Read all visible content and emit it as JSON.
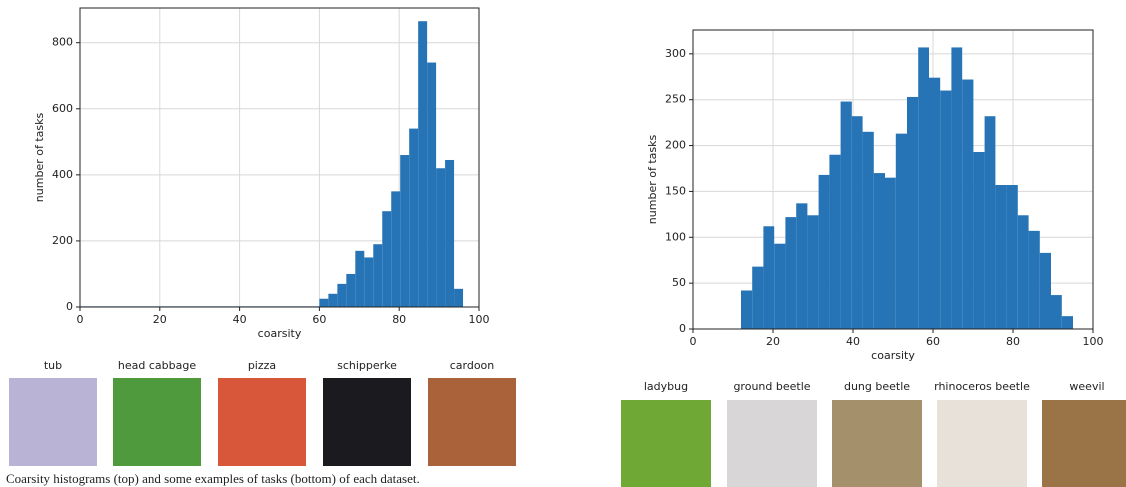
{
  "chart_data": [
    {
      "type": "histogram",
      "xlabel": "coarsity",
      "ylabel": "number of tasks",
      "bins": [
        0,
        60,
        62.25,
        64.5,
        66.75,
        69,
        71.25,
        73.5,
        75.75,
        78,
        80.25,
        82.5,
        84.75,
        87,
        89.25,
        91.5,
        93.75,
        96
      ],
      "values": [
        2,
        25,
        40,
        70,
        100,
        170,
        150,
        190,
        290,
        350,
        460,
        540,
        865,
        740,
        420,
        445,
        55
      ],
      "color": "#2674b6",
      "xlim": [
        0,
        100
      ],
      "ylim": [
        0,
        905
      ],
      "xticks": [
        0,
        20,
        40,
        60,
        80,
        100
      ],
      "yticks": [
        0,
        200,
        400,
        600,
        800
      ],
      "grid": true
    },
    {
      "type": "histogram",
      "xlabel": "coarsity",
      "ylabel": "number of tasks",
      "bins": [
        12,
        14.8,
        17.6,
        20.3,
        23.1,
        25.8,
        28.6,
        31.4,
        34.1,
        36.9,
        39.7,
        42.4,
        45.2,
        48.0,
        50.7,
        53.5,
        56.3,
        59.0,
        61.8,
        64.6,
        67.3,
        70.1,
        72.9,
        75.6,
        78.4,
        81.2,
        83.9,
        86.7,
        89.5,
        92.2,
        95.0
      ],
      "values": [
        42,
        68,
        112,
        93,
        122,
        137,
        124,
        168,
        190,
        248,
        232,
        215,
        170,
        165,
        213,
        253,
        307,
        274,
        260,
        307,
        272,
        193,
        232,
        157,
        157,
        124,
        107,
        83,
        37,
        14
      ],
      "color": "#2674b6",
      "xlim": [
        0,
        100
      ],
      "ylim": [
        0,
        326
      ],
      "xticks": [
        0,
        20,
        40,
        60,
        80,
        100
      ],
      "yticks": [
        0,
        50,
        100,
        150,
        200,
        250,
        300
      ],
      "grid": true
    }
  ],
  "examples": [
    {
      "labels": [
        "tub",
        "head cabbage",
        "pizza",
        "schipperke",
        "cardoon"
      ]
    },
    {
      "labels": [
        "ladybug",
        "ground beetle",
        "dung beetle",
        "rhinoceros beetle",
        "weevil"
      ]
    }
  ],
  "caption": "Coarsity histograms (top) and some examples of tasks (bottom) of each dataset."
}
